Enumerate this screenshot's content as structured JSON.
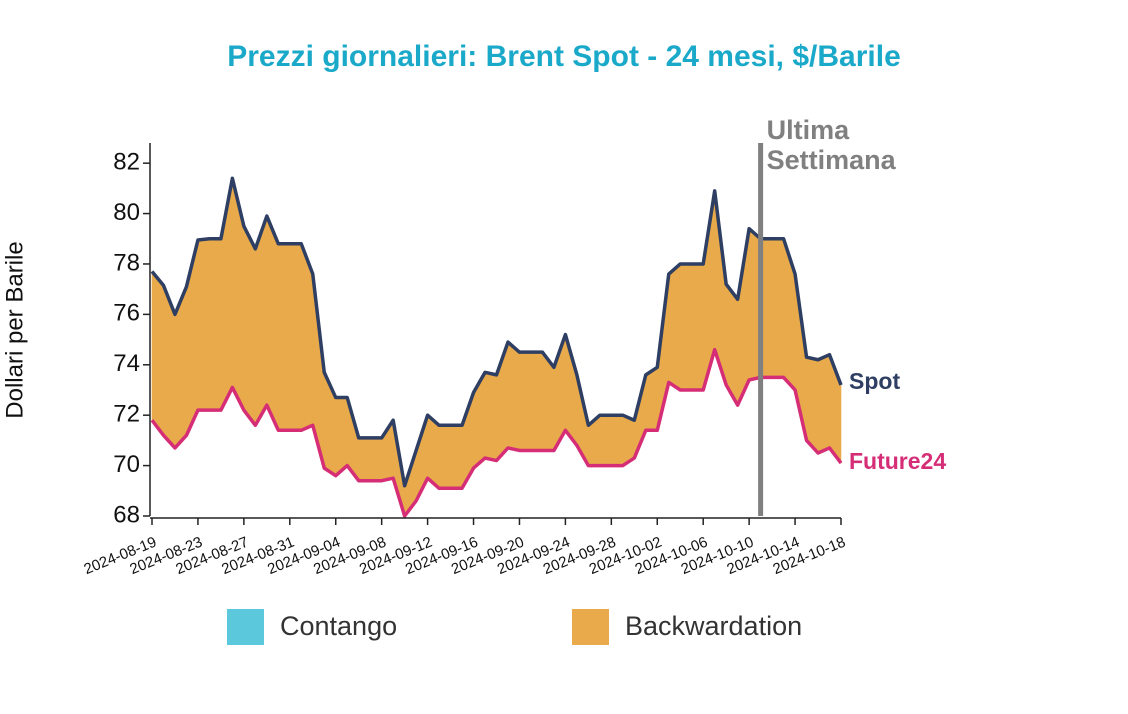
{
  "chart_data": {
    "type": "line",
    "title": "Prezzi giornalieri: Brent Spot - 24 mesi, $/Barile",
    "y_label": "Dollari per Barile",
    "x": [
      "2024-08-19",
      "2024-08-20",
      "2024-08-21",
      "2024-08-22",
      "2024-08-23",
      "2024-08-24",
      "2024-08-25",
      "2024-08-26",
      "2024-08-27",
      "2024-08-28",
      "2024-08-29",
      "2024-08-30",
      "2024-08-31",
      "2024-09-01",
      "2024-09-02",
      "2024-09-03",
      "2024-09-04",
      "2024-09-05",
      "2024-09-06",
      "2024-09-07",
      "2024-09-08",
      "2024-09-09",
      "2024-09-10",
      "2024-09-11",
      "2024-09-12",
      "2024-09-13",
      "2024-09-14",
      "2024-09-15",
      "2024-09-16",
      "2024-09-17",
      "2024-09-18",
      "2024-09-19",
      "2024-09-20",
      "2024-09-21",
      "2024-09-22",
      "2024-09-23",
      "2024-09-24",
      "2024-09-25",
      "2024-09-26",
      "2024-09-27",
      "2024-09-28",
      "2024-09-29",
      "2024-09-30",
      "2024-10-01",
      "2024-10-02",
      "2024-10-03",
      "2024-10-04",
      "2024-10-05",
      "2024-10-06",
      "2024-10-07",
      "2024-10-08",
      "2024-10-09",
      "2024-10-10",
      "2024-10-11",
      "2024-10-12",
      "2024-10-13",
      "2024-10-14",
      "2024-10-15",
      "2024-10-16",
      "2024-10-17",
      "2024-10-18"
    ],
    "series": [
      {
        "name": "Spot",
        "color": "#2e3f63",
        "values": [
          77.7,
          77.15,
          76.0,
          77.1,
          78.95,
          79.0,
          79.0,
          81.4,
          79.5,
          78.6,
          79.9,
          78.8,
          78.8,
          78.8,
          77.6,
          73.7,
          72.7,
          72.7,
          71.1,
          71.1,
          71.1,
          71.8,
          69.2,
          70.6,
          72.0,
          71.6,
          71.6,
          71.6,
          72.9,
          73.7,
          73.6,
          74.9,
          74.5,
          74.5,
          74.5,
          73.9,
          75.2,
          73.6,
          71.6,
          72.0,
          72.0,
          72.0,
          71.8,
          73.6,
          73.9,
          77.6,
          78.0,
          78.0,
          78.0,
          80.9,
          77.2,
          76.6,
          79.4,
          79.0,
          79.0,
          79.0,
          77.6,
          74.3,
          74.2,
          74.4,
          73.2
        ]
      },
      {
        "name": "Future24",
        "color": "#d62e76",
        "values": [
          71.8,
          71.2,
          70.7,
          71.2,
          72.2,
          72.2,
          72.2,
          73.1,
          72.2,
          71.6,
          72.4,
          71.4,
          71.4,
          71.4,
          71.6,
          69.9,
          69.6,
          70.0,
          69.4,
          69.4,
          69.4,
          69.5,
          68.0,
          68.6,
          69.5,
          69.1,
          69.1,
          69.1,
          69.9,
          70.3,
          70.2,
          70.7,
          70.6,
          70.6,
          70.6,
          70.6,
          71.4,
          70.8,
          70.0,
          70.0,
          70.0,
          70.0,
          70.3,
          71.4,
          71.4,
          73.3,
          73.0,
          73.0,
          73.0,
          74.6,
          73.2,
          72.4,
          73.4,
          73.5,
          73.5,
          73.5,
          73.0,
          71.0,
          70.5,
          70.7,
          70.1
        ]
      }
    ],
    "fill_legend": [
      {
        "name": "Contango",
        "color": "#5bc8dc"
      },
      {
        "name": "Backwardation",
        "color": "#e8aa4a"
      }
    ],
    "annotation": {
      "x": "2024-10-11",
      "lines": [
        "Ultima",
        "Settimana"
      ],
      "color": "#808080"
    },
    "xlim": [
      "2024-08-19",
      "2024-10-18"
    ],
    "xticks": [
      "2024-08-19",
      "2024-08-23",
      "2024-08-27",
      "2024-08-31",
      "2024-09-04",
      "2024-09-08",
      "2024-09-12",
      "2024-09-16",
      "2024-09-20",
      "2024-09-24",
      "2024-09-28",
      "2024-10-02",
      "2024-10-06",
      "2024-10-10",
      "2024-10-14",
      "2024-10-18"
    ],
    "ylim": [
      68,
      82.8
    ],
    "yticks": [
      68,
      70,
      72,
      74,
      76,
      78,
      80,
      82
    ]
  }
}
